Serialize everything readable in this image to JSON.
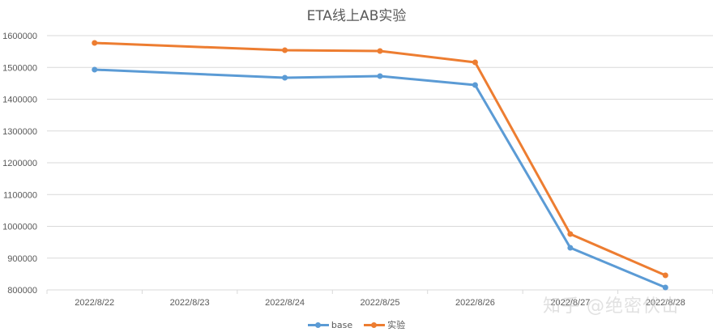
{
  "chart_data": {
    "type": "line",
    "title": "ETA线上AB实验",
    "xlabel": "",
    "ylabel": "",
    "categories": [
      "2022/8/22",
      "2022/8/23",
      "2022/8/24",
      "2022/8/25",
      "2022/8/26",
      "2022/8/27",
      "2022/8/28"
    ],
    "series": [
      {
        "name": "base",
        "color": "#5B9BD5",
        "values": [
          1493000,
          null,
          1467500,
          1472600,
          1444600,
          932500,
          807600
        ]
      },
      {
        "name": "实验",
        "color": "#ED7D31",
        "values": [
          1577000,
          null,
          1554000,
          1551600,
          1516000,
          975800,
          845900
        ]
      }
    ],
    "ylim": [
      800000,
      1600000
    ],
    "yticks": [
      800000,
      900000,
      1000000,
      1100000,
      1200000,
      1300000,
      1400000,
      1500000,
      1600000
    ],
    "grid": true,
    "legend_position": "bottom"
  },
  "watermark": "知乎 @绝密伏击"
}
